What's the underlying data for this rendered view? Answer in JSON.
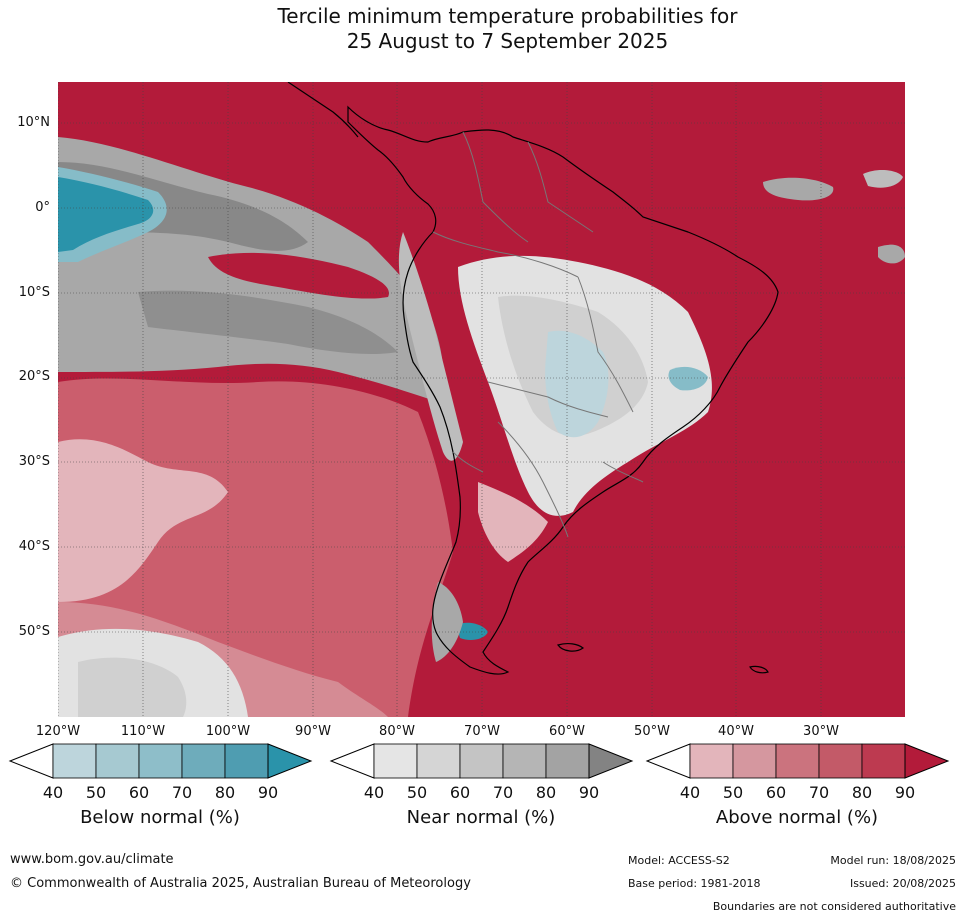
{
  "title": {
    "line1": "Tercile minimum temperature probabilities for",
    "line2": "25 August to 7 September 2025"
  },
  "map": {
    "lat_labels": [
      "10°N",
      "0°",
      "10°S",
      "20°S",
      "30°S",
      "40°S",
      "50°S"
    ],
    "lon_labels": [
      "120°W",
      "110°W",
      "100°W",
      "90°W",
      "80°W",
      "70°W",
      "60°W",
      "50°W",
      "40°W",
      "30°W"
    ],
    "colors": {
      "above_90": "#b31b3a",
      "above_80": "#c53b53",
      "above_70": "#cb5e6d",
      "above_60": "#d58b94",
      "above_50": "#e3b5bb",
      "near_50": "#e2e2e2",
      "near_60": "#d0d0d0",
      "near_70": "#bdbdbd",
      "near_80": "#a8a8a8",
      "near_90": "#888888",
      "below_50": "#bdd5dc",
      "below_70": "#86bcc8",
      "below_90": "#2a93aa"
    }
  },
  "colorbars": [
    {
      "label": "Below normal (%)",
      "ticks": [
        "40",
        "50",
        "60",
        "70",
        "80",
        "90"
      ],
      "colors": [
        "#bdd5dc",
        "#a6c9d1",
        "#8ebec9",
        "#6eacbb",
        "#4f9db1",
        "#2a93aa"
      ]
    },
    {
      "label": "Near normal (%)",
      "ticks": [
        "40",
        "50",
        "60",
        "70",
        "80",
        "90"
      ],
      "colors": [
        "#e5e5e5",
        "#d5d5d5",
        "#c4c4c4",
        "#b5b5b5",
        "#a3a3a3",
        "#838383"
      ]
    },
    {
      "label": "Above normal (%)",
      "ticks": [
        "40",
        "50",
        "60",
        "70",
        "80",
        "90"
      ],
      "colors": [
        "#e3b5bb",
        "#d5979f",
        "#cb737e",
        "#c35a68",
        "#bd3a50",
        "#b31b3a"
      ]
    }
  ],
  "footer": {
    "url": "www.bom.gov.au/climate",
    "copyright": "© Commonwealth of Australia 2025, Australian Bureau of Meteorology",
    "model": "Model: ACCESS-S2",
    "model_run": "Model run: 18/08/2025",
    "base_period": "Base period: 1981-2018",
    "issued": "Issued: 20/08/2025",
    "disclaimer": "Boundaries are not considered authoritative"
  }
}
